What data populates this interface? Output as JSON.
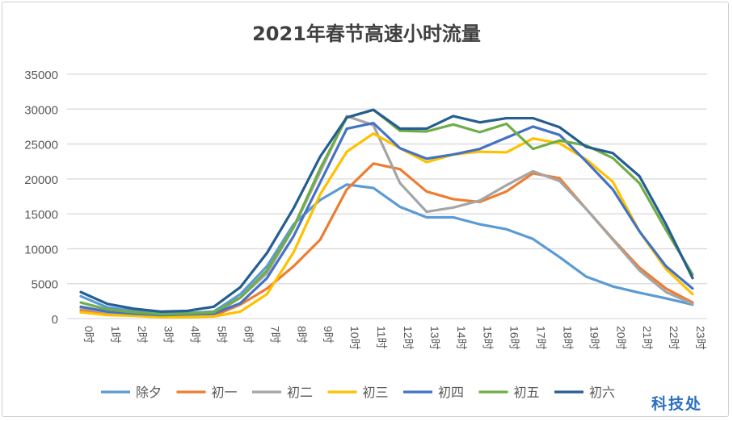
{
  "chart_data": {
    "type": "line",
    "title": "2021年春节高速小时流量",
    "categories": [
      "0时",
      "1时",
      "2时",
      "3时",
      "4时",
      "5时",
      "6时",
      "7时",
      "8时",
      "9时",
      "10时",
      "11时",
      "12时",
      "13时",
      "14时",
      "15时",
      "16时",
      "17时",
      "18时",
      "19时",
      "20时",
      "21时",
      "22时",
      "23时"
    ],
    "ylim": [
      0,
      35000
    ],
    "yticks": [
      "0",
      "5000",
      "10000",
      "15000",
      "20000",
      "25000",
      "30000",
      "35000"
    ],
    "grid": true,
    "legend_position": "bottom",
    "series": [
      {
        "name": "除夕",
        "color": "#5b9bd5",
        "values": [
          3200,
          1600,
          1100,
          800,
          800,
          1000,
          3500,
          7500,
          13500,
          17000,
          19200,
          18700,
          16000,
          14500,
          14500,
          13500,
          12800,
          11400,
          8800,
          6000,
          4600,
          3700,
          2900,
          2000
        ]
      },
      {
        "name": "初一",
        "color": "#ed7d31",
        "values": [
          1200,
          700,
          500,
          300,
          300,
          400,
          2000,
          4300,
          7500,
          11300,
          18500,
          22200,
          21400,
          18200,
          17100,
          16700,
          18200,
          20800,
          20100,
          15700,
          11400,
          7300,
          4300,
          2300
        ]
      },
      {
        "name": "初二",
        "color": "#a5a5a5",
        "values": [
          1500,
          900,
          700,
          500,
          500,
          600,
          3000,
          6500,
          13000,
          21000,
          29000,
          27700,
          19400,
          15300,
          15900,
          16900,
          19100,
          21100,
          19700,
          15700,
          11300,
          6900,
          3800,
          2100
        ]
      },
      {
        "name": "初三",
        "color": "#ffc000",
        "values": [
          900,
          500,
          400,
          200,
          200,
          300,
          1000,
          3500,
          9500,
          17800,
          23900,
          26500,
          24400,
          22400,
          23500,
          23900,
          23800,
          25800,
          25100,
          22800,
          19600,
          12500,
          7100,
          3500
        ]
      },
      {
        "name": "初四",
        "color": "#4472c4",
        "values": [
          1700,
          1000,
          700,
          500,
          600,
          700,
          2200,
          5800,
          11800,
          19500,
          27200,
          28000,
          24400,
          22900,
          23500,
          24300,
          25900,
          27500,
          26300,
          22500,
          18500,
          12500,
          7500,
          4300
        ]
      },
      {
        "name": "初五",
        "color": "#70ad47",
        "values": [
          2300,
          1300,
          900,
          600,
          700,
          900,
          3000,
          6900,
          13100,
          21500,
          28800,
          29900,
          26900,
          26800,
          27800,
          26700,
          27900,
          24300,
          25500,
          24800,
          23000,
          19400,
          12700,
          6300
        ]
      },
      {
        "name": "初六",
        "color": "#255e91",
        "values": [
          3800,
          2100,
          1400,
          1000,
          1100,
          1700,
          4500,
          9400,
          15800,
          23200,
          28800,
          29900,
          27200,
          27200,
          29000,
          28100,
          28700,
          28700,
          27400,
          24600,
          23700,
          20400,
          13500,
          5800
        ]
      }
    ]
  },
  "watermark": "科技处"
}
